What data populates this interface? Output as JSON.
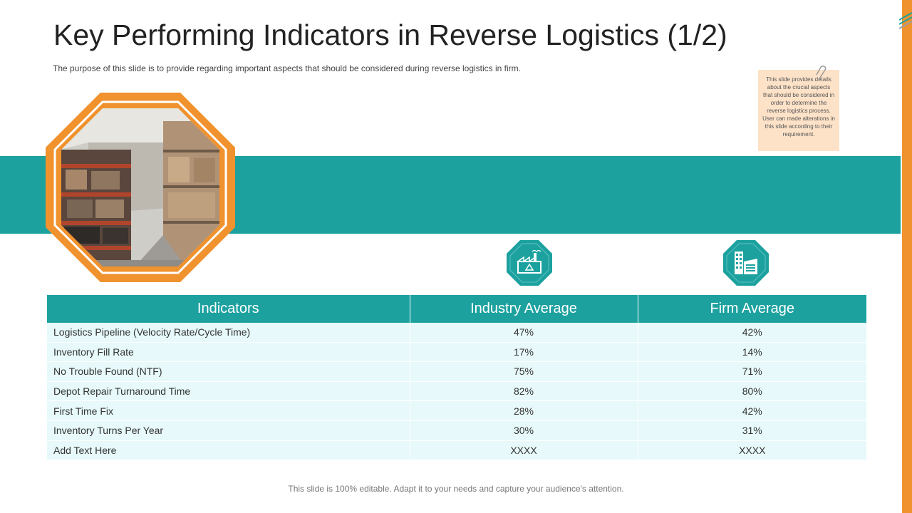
{
  "slide": {
    "title": "Key Performing Indicators in Reverse Logistics (1/2)",
    "subtitle": "The purpose of this slide is to provide regarding important aspects that should be considered during reverse logistics in firm.",
    "note": "This slide provides details about the crucial aspects that should be considered in order to determine the reverse logistics process. User can made alterations in this slide according to their requirement.",
    "footer": "This slide is 100% editable. Adapt it to your needs and capture your audience's attention."
  },
  "colors": {
    "accent_teal": "#1ca19f",
    "accent_orange": "#f0922e",
    "row_bg": "#e7f9fa",
    "note_bg": "#fde2c8"
  },
  "icons": {
    "photo": "warehouse-photo",
    "industry": "factory-icon",
    "firm": "office-building-icon"
  },
  "table": {
    "headers": [
      "Indicators",
      "Industry Average",
      "Firm Average"
    ],
    "rows": [
      {
        "indicator": "Logistics Pipeline (Velocity Rate/Cycle Time)",
        "industry": "47%",
        "firm": "42%"
      },
      {
        "indicator": "Inventory Fill Rate",
        "industry": "17%",
        "firm": "14%"
      },
      {
        "indicator": "No Trouble Found (NTF)",
        "industry": "75%",
        "firm": "71%"
      },
      {
        "indicator": "Depot Repair Turnaround Time",
        "industry": "82%",
        "firm": "80%"
      },
      {
        "indicator": "First Time Fix",
        "industry": "28%",
        "firm": "42%"
      },
      {
        "indicator": "Inventory Turns Per Year",
        "industry": "30%",
        "firm": "31%"
      },
      {
        "indicator": "Add Text Here",
        "industry": "XXXX",
        "firm": "XXXX"
      }
    ]
  }
}
